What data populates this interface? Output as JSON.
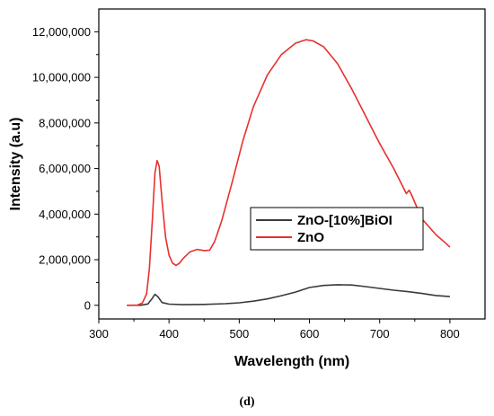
{
  "chart_data": {
    "type": "line",
    "xlabel": "Wavelength (nm)",
    "ylabel": "Intensity (a.u)",
    "xlim": [
      300,
      850
    ],
    "ylim": [
      -600000,
      13000000
    ],
    "x_ticks": [
      300,
      400,
      500,
      600,
      700,
      800
    ],
    "y_ticks": [
      0,
      2000000,
      4000000,
      6000000,
      8000000,
      10000000,
      12000000
    ],
    "x_tick_labels": [
      "300",
      "400",
      "500",
      "600",
      "700",
      "800"
    ],
    "y_tick_labels": [
      "0",
      "2,000,000",
      "4,000,000",
      "6,000,000",
      "8,000,000",
      "10,000,000",
      "12,000,000"
    ],
    "legend_position": "center-right",
    "grid": false,
    "series": [
      {
        "name": "ZnO-[10%]BiOI",
        "color": "#3a3a3a",
        "points": [
          [
            340,
            0
          ],
          [
            360,
            5000
          ],
          [
            370,
            60000
          ],
          [
            376,
            300000
          ],
          [
            380,
            480000
          ],
          [
            384,
            380000
          ],
          [
            390,
            120000
          ],
          [
            400,
            50000
          ],
          [
            420,
            25000
          ],
          [
            450,
            40000
          ],
          [
            480,
            70000
          ],
          [
            500,
            110000
          ],
          [
            520,
            180000
          ],
          [
            540,
            280000
          ],
          [
            560,
            420000
          ],
          [
            580,
            580000
          ],
          [
            600,
            780000
          ],
          [
            620,
            870000
          ],
          [
            640,
            900000
          ],
          [
            660,
            890000
          ],
          [
            680,
            820000
          ],
          [
            700,
            740000
          ],
          [
            720,
            660000
          ],
          [
            740,
            600000
          ],
          [
            760,
            520000
          ],
          [
            780,
            430000
          ],
          [
            800,
            380000
          ]
        ]
      },
      {
        "name": "ZnO",
        "color": "#e8302c",
        "points": [
          [
            340,
            0
          ],
          [
            355,
            10000
          ],
          [
            362,
            100000
          ],
          [
            368,
            500000
          ],
          [
            372,
            1600000
          ],
          [
            376,
            3600000
          ],
          [
            380,
            5800000
          ],
          [
            383,
            6350000
          ],
          [
            386,
            6100000
          ],
          [
            390,
            4600000
          ],
          [
            395,
            3000000
          ],
          [
            400,
            2200000
          ],
          [
            405,
            1850000
          ],
          [
            410,
            1750000
          ],
          [
            415,
            1850000
          ],
          [
            420,
            2050000
          ],
          [
            430,
            2350000
          ],
          [
            440,
            2450000
          ],
          [
            450,
            2400000
          ],
          [
            458,
            2420000
          ],
          [
            465,
            2800000
          ],
          [
            475,
            3700000
          ],
          [
            490,
            5400000
          ],
          [
            505,
            7200000
          ],
          [
            520,
            8700000
          ],
          [
            540,
            10100000
          ],
          [
            560,
            11000000
          ],
          [
            580,
            11500000
          ],
          [
            595,
            11650000
          ],
          [
            605,
            11600000
          ],
          [
            620,
            11350000
          ],
          [
            640,
            10600000
          ],
          [
            660,
            9500000
          ],
          [
            680,
            8300000
          ],
          [
            700,
            7100000
          ],
          [
            720,
            6000000
          ],
          [
            738,
            4900000
          ],
          [
            742,
            5050000
          ],
          [
            746,
            4800000
          ],
          [
            760,
            3800000
          ],
          [
            780,
            3100000
          ],
          [
            795,
            2700000
          ],
          [
            800,
            2550000
          ]
        ]
      }
    ]
  },
  "caption": "(d)"
}
